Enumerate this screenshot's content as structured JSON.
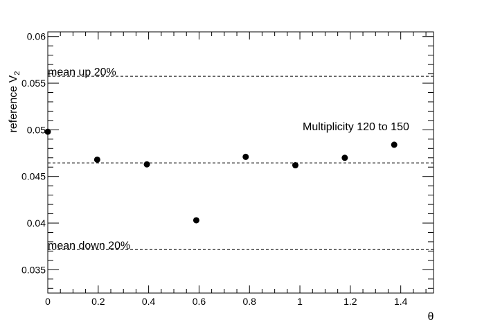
{
  "chart_data": {
    "type": "scatter",
    "xlabel": "θ",
    "ylabel_main": "reference V",
    "ylabel_sub": "2",
    "xlim": [
      0,
      1.53
    ],
    "ylim": [
      0.0325,
      0.0605
    ],
    "x_ticks": [
      0,
      0.2,
      0.4,
      0.6,
      0.8,
      1,
      1.2,
      1.4
    ],
    "x_tick_labels": [
      "0",
      "0.2",
      "0.4",
      "0.6",
      "0.8",
      "1",
      "1.2",
      "1.4"
    ],
    "y_ticks": [
      0.035,
      0.04,
      0.045,
      0.05,
      0.055,
      0.06
    ],
    "y_tick_labels": [
      "0.035",
      "0.04",
      "0.045",
      "0.05",
      "0.055",
      "0.06"
    ],
    "points": [
      {
        "x": 0.0,
        "y": 0.0498
      },
      {
        "x": 0.196,
        "y": 0.0468
      },
      {
        "x": 0.393,
        "y": 0.0463
      },
      {
        "x": 0.589,
        "y": 0.0403
      },
      {
        "x": 0.785,
        "y": 0.0471
      },
      {
        "x": 0.982,
        "y": 0.0462
      },
      {
        "x": 1.178,
        "y": 0.047
      },
      {
        "x": 1.374,
        "y": 0.0484
      }
    ],
    "reference_lines": [
      {
        "y": 0.05574,
        "label": "mean up 20%"
      },
      {
        "y": 0.04645,
        "label": ""
      },
      {
        "y": 0.03716,
        "label": "mean down 20%"
      }
    ],
    "annotation": "Multiplicity 120 to 150",
    "grid": false,
    "line_style": "dashed",
    "marker_color": "#000000"
  }
}
